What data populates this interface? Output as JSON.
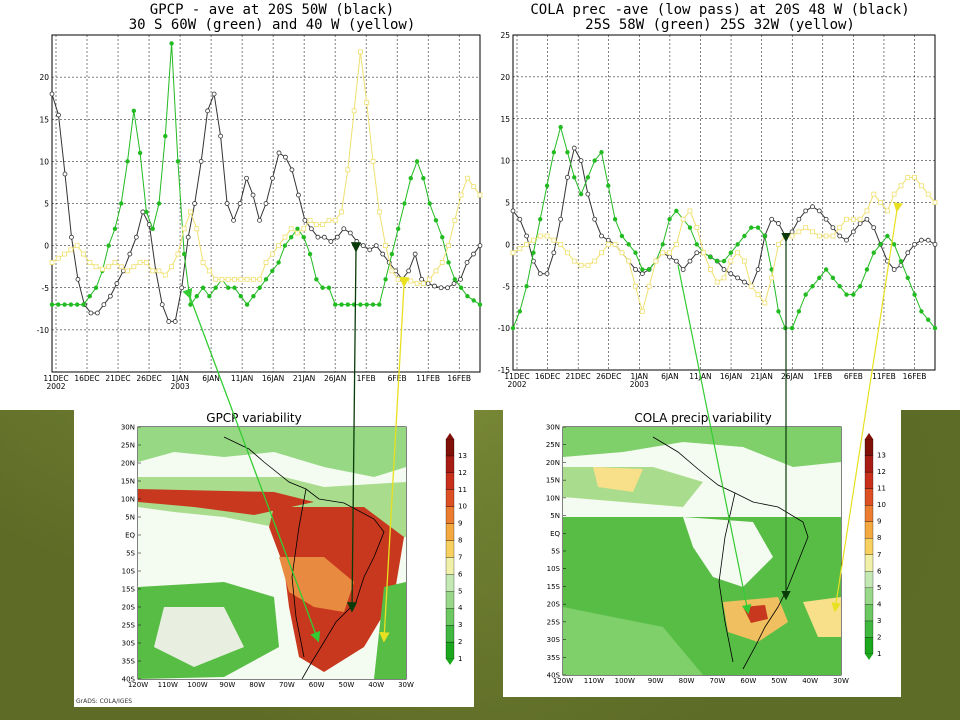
{
  "chart_data": [
    {
      "type": "line",
      "title_line1": "GPCP - ave at 20S 50W (black)",
      "title_line2": "30 S 60W (green) and 40 W (yellow)",
      "ylim": [
        -15,
        25
      ],
      "yticks": [
        -15,
        -10,
        -5,
        0,
        5,
        10,
        15,
        20
      ],
      "ytick_labels": [
        "",
        "-10",
        "-5",
        "0",
        "5",
        "10",
        "15",
        "20"
      ],
      "x_labels": [
        "11DEC\n2002",
        "16DEC",
        "21DEC",
        "26DEC",
        "1JAN\n2003",
        "6JAN",
        "11JAN",
        "16JAN",
        "21JAN",
        "26JAN",
        "1FEB",
        "6FEB",
        "11FEB",
        "16FEB"
      ],
      "series": [
        {
          "name": "20S 50W (black)",
          "color": "#333333",
          "marker": "o",
          "values": [
            18,
            15.5,
            8.5,
            1,
            -4,
            -7,
            -8,
            -8,
            -7,
            -6,
            -4.5,
            -3,
            -1,
            1,
            4,
            2.5,
            -3,
            -7,
            -9,
            -9,
            -5,
            1,
            5,
            10,
            16,
            18,
            13,
            5,
            3,
            5,
            8,
            6,
            3,
            5,
            8,
            11,
            10.5,
            9,
            6,
            3,
            2,
            1,
            1,
            0.5,
            1,
            2,
            1.5,
            0.5,
            0,
            -0.5,
            0,
            -1,
            -2,
            -3,
            -4,
            -3,
            -1,
            -4,
            -4.5,
            -4.8,
            -5,
            -5,
            -4.5,
            -4,
            -2,
            -1,
            0
          ]
        },
        {
          "name": "30S 60W (green)",
          "color": "#22bb22",
          "marker": "o",
          "values": [
            -7,
            -7,
            -7,
            -7,
            -7,
            -7,
            -6,
            -5,
            -3,
            0,
            2,
            5,
            10,
            16,
            11,
            4,
            2,
            5,
            13,
            24,
            10,
            -1,
            -7,
            -6,
            -5,
            -6,
            -5,
            -4,
            -5,
            -5,
            -6,
            -7,
            -6,
            -5,
            -4,
            -3,
            -2,
            0,
            1,
            2,
            1,
            -1,
            -4,
            -5,
            -5,
            -7,
            -7,
            -7,
            -7,
            -7,
            -7,
            -7,
            -7,
            -4,
            -1,
            2,
            5,
            8,
            10,
            8,
            5,
            3,
            1,
            -2,
            -4,
            -5,
            -6,
            -6.5,
            -7
          ]
        },
        {
          "name": "30S 40W (yellow)",
          "color": "#f0e070",
          "marker": "s",
          "values": [
            -2,
            -1.5,
            -1,
            -0.5,
            0,
            -1,
            -2,
            -2.5,
            -2.8,
            -2.5,
            -2,
            -2.5,
            -3,
            -2.5,
            -2,
            -2,
            -3,
            -3,
            -3.5,
            -2.5,
            -1,
            2,
            4,
            2,
            -2,
            -3,
            -4,
            -4,
            -4,
            -4,
            -4,
            -4,
            -4,
            -4,
            -2,
            -1,
            0,
            1,
            2,
            1.5,
            2,
            3,
            2.5,
            2.5,
            3,
            3,
            4,
            9,
            16,
            23,
            17,
            10,
            4,
            0,
            -3,
            -4,
            -4,
            -4.2,
            -4.5,
            -4.5,
            -4,
            -3,
            -2,
            0,
            3,
            6,
            8,
            7,
            6
          ]
        }
      ]
    },
    {
      "type": "line",
      "title_line1": "COLA prec -ave (low pass) at 20S 48 W (black)",
      "title_line2": "25S 58W (green) 25S 32W (yellow)",
      "ylim": [
        -15,
        25
      ],
      "yticks": [
        -15,
        -10,
        -5,
        0,
        5,
        10,
        15,
        20,
        25
      ],
      "ytick_labels": [
        "-15",
        "-10",
        "-5",
        "0",
        "5",
        "10",
        "15",
        "20",
        "25"
      ],
      "x_labels": [
        "11DEC\n2002",
        "16DEC",
        "21DEC",
        "26DEC",
        "1JAN\n2003",
        "6JAN",
        "11JAN",
        "16JAN",
        "21JAN",
        "26JAN",
        "1FEB",
        "6FEB",
        "11FEB",
        "16FEB"
      ],
      "series": [
        {
          "name": "20S 48W (black)",
          "color": "#333333",
          "marker": "o",
          "values": [
            4,
            3,
            1,
            -2,
            -3.5,
            -3.5,
            -1,
            3,
            8,
            11.5,
            10,
            6,
            3,
            1,
            0.5,
            0,
            -1,
            -2,
            -3,
            -3.5,
            -3,
            -2,
            -1,
            -1.5,
            -2,
            -3,
            -2,
            -1,
            -1,
            -1.5,
            -2,
            -3,
            -3.5,
            -4,
            -4.5,
            -5,
            -3,
            1,
            3,
            2.5,
            1,
            1.5,
            3,
            4,
            4.5,
            4,
            3,
            2,
            1,
            0.5,
            1.5,
            2.5,
            3,
            2,
            0,
            -2,
            -3,
            -2.5,
            -1,
            0,
            0.5,
            0.5,
            0
          ]
        },
        {
          "name": "25S 58W (green)",
          "color": "#22bb22",
          "marker": "o",
          "values": [
            -10,
            -8,
            -5,
            -1,
            3,
            7,
            11,
            14,
            11,
            8,
            6,
            8,
            10,
            11,
            7,
            3,
            1,
            0,
            -1,
            -3,
            -3,
            -2,
            0,
            3,
            4,
            3,
            2,
            0,
            -1,
            -1.5,
            -2,
            -2,
            -1,
            0,
            1,
            2,
            2,
            1,
            -3,
            -8,
            -10,
            -10,
            -8,
            -6,
            -5,
            -4,
            -3,
            -4,
            -5,
            -6,
            -6,
            -5,
            -3,
            -1,
            0,
            1,
            0,
            -2,
            -4,
            -6,
            -8,
            -9,
            -10
          ]
        },
        {
          "name": "25S 32W (yellow)",
          "color": "#f0e070",
          "marker": "s",
          "values": [
            -1,
            -0.5,
            0,
            0.5,
            1,
            1,
            0.5,
            0,
            -1,
            -2,
            -2.5,
            -2.5,
            -2,
            -1,
            0,
            0,
            -1,
            -2,
            -5,
            -8,
            -5,
            -2,
            -1,
            -1,
            0,
            3,
            4,
            2,
            -1,
            -3,
            -4.5,
            -4,
            -2,
            -1,
            -2,
            -5,
            -6,
            -7,
            -4,
            0,
            1,
            1,
            1.5,
            2,
            1.5,
            1,
            1,
            1,
            2,
            3,
            3,
            3,
            4,
            6,
            5,
            4,
            6,
            7,
            8,
            8,
            7,
            6,
            5
          ]
        }
      ]
    }
  ],
  "maps": {
    "left": {
      "title": "GPCP  variability",
      "lat_labels": [
        "30N",
        "25N",
        "20N",
        "15N",
        "10N",
        "5N",
        "EQ",
        "5S",
        "10S",
        "15S",
        "20S",
        "25S",
        "30S",
        "35S",
        "40S"
      ],
      "lon_labels": [
        "120W",
        "110W",
        "100W",
        "90W",
        "80W",
        "70W",
        "60W",
        "50W",
        "40W",
        "30W"
      ],
      "colorbar": [
        "1",
        "2",
        "3",
        "4",
        "5",
        "6",
        "7",
        "8",
        "9",
        "10",
        "11",
        "12",
        "13"
      ],
      "footer": "GrADS: COLA/IGES"
    },
    "right": {
      "title": "COLA precip variability",
      "lat_labels": [
        "30N",
        "25N",
        "20N",
        "15N",
        "10N",
        "5N",
        "EQ",
        "5S",
        "10S",
        "15S",
        "20S",
        "25S",
        "30S",
        "35S",
        "40S"
      ],
      "lon_labels": [
        "120W",
        "110W",
        "100W",
        "90W",
        "80W",
        "70W",
        "60W",
        "50W",
        "40W",
        "30W"
      ],
      "colorbar": [
        "1",
        "2",
        "3",
        "4",
        "5",
        "6",
        "7",
        "8",
        "9",
        "10",
        "11",
        "12",
        "13"
      ]
    }
  },
  "colors": {
    "black_series": "#333333",
    "green_series": "#22bb22",
    "yellow_series": "#f0e070",
    "arrow_green": "#33cc33",
    "arrow_dark": "#0a3a0a",
    "arrow_yellow": "#e8e020"
  }
}
